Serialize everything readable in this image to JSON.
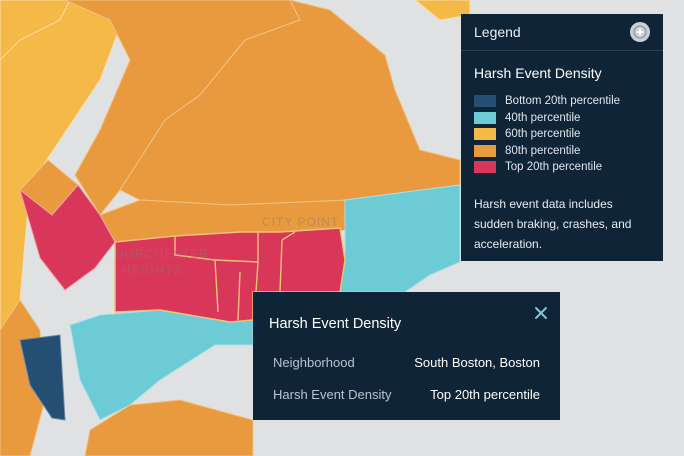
{
  "legend": {
    "title": "Legend",
    "compass_icon": "compass-icon",
    "heading": "Harsh Event Density",
    "items": [
      {
        "label": "Bottom 20th percentile",
        "color": "#244f72"
      },
      {
        "label": "40th percentile",
        "color": "#6ccbd4"
      },
      {
        "label": "60th percentile",
        "color": "#f5b947"
      },
      {
        "label": "80th percentile",
        "color": "#e99a3f"
      },
      {
        "label": "Top 20th percentile",
        "color": "#d8375a"
      }
    ],
    "note": "Harsh event data includes sudden braking, crashes, and acceleration."
  },
  "map": {
    "labels": [
      "CITY POINT",
      "DORCHESTER",
      "HEIGHTS"
    ],
    "water_color": "#dfe1e3"
  },
  "popup": {
    "title": "Harsh Event Density",
    "close_icon": "close-icon",
    "rows": [
      {
        "key": "Neighborhood",
        "value": "South Boston, Boston"
      },
      {
        "key": "Harsh Event Density",
        "value": "Top 20th percentile"
      }
    ]
  }
}
